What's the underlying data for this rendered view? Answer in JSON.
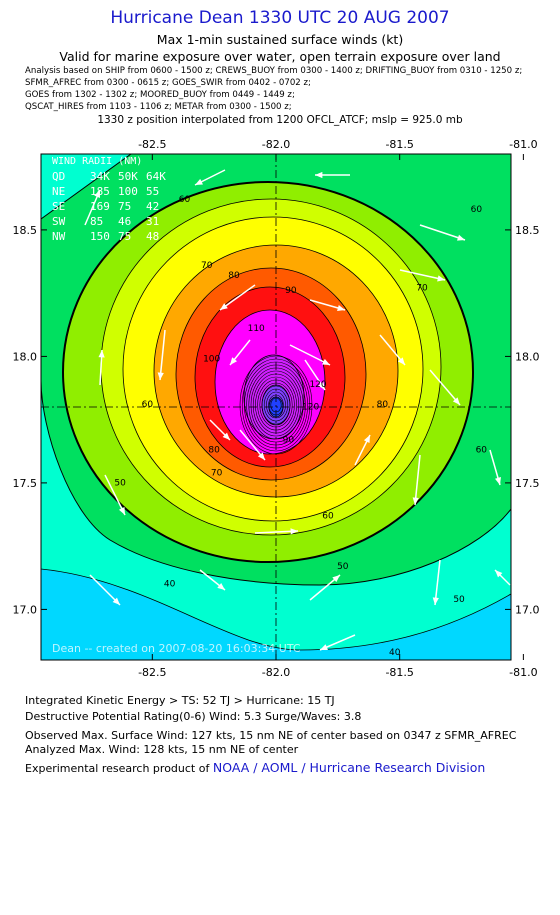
{
  "header": {
    "title": "Hurricane Dean 1330 UTC 20 AUG 2007",
    "subtitle1": "Max 1-min sustained surface winds (kt)",
    "subtitle2": "Valid for marine exposure over water, open terrain exposure over land",
    "sources": [
      "Analysis based on  SHIP from 0600 - 1500 z;  CREWS_BUOY from 0300 - 1400 z;  DRIFTING_BUOY from 0310 - 1250 z;",
      "SFMR_AFREC from 0300 - 0615 z;  GOES_SWIR from 0402 - 0702 z;",
      "GOES from 1302 - 1302 z;  MOORED_BUOY from 0449 - 1449 z;",
      "QSCAT_HIRES from 1103 - 1106 z;  METAR from 0300 - 1500 z;"
    ],
    "position_note": "1330 z position interpolated from 1200 OFCL_ATCF; mslp = 925.0 mb"
  },
  "colors": {
    "title": "#1a1acc",
    "bands": [
      "#00d8ff",
      "#00ffd0",
      "#00e060",
      "#90ee00",
      "#d0ff00",
      "#ffff00",
      "#ffa800",
      "#ff5a00",
      "#ff1010",
      "#ff00ff",
      "#d020ff",
      "#8040ff",
      "#2040ff"
    ]
  },
  "chart_data": {
    "type": "contour",
    "x_ticks": [
      "-82.5",
      "-82.0",
      "-81.5",
      "-81.0"
    ],
    "y_ticks": [
      "18.5",
      "18.0",
      "17.5",
      "17.0"
    ],
    "x_range": [
      -82.95,
      -81.05
    ],
    "y_range": [
      16.8,
      18.8
    ],
    "center": {
      "lon": -82.0,
      "lat": 17.8
    },
    "levels": [
      40,
      50,
      60,
      70,
      80,
      90,
      100,
      110,
      120
    ],
    "level_labels": [
      {
        "text": "40",
        "lon": -82.43,
        "lat": 17.09
      },
      {
        "text": "40",
        "lon": -81.52,
        "lat": 16.82
      },
      {
        "text": "50",
        "lon": -82.63,
        "lat": 17.49
      },
      {
        "text": "50",
        "lon": -81.26,
        "lat": 17.03
      },
      {
        "text": "50",
        "lon": -81.73,
        "lat": 17.16
      },
      {
        "text": "60",
        "lon": -82.37,
        "lat": 18.61
      },
      {
        "text": "60",
        "lon": -81.19,
        "lat": 18.57
      },
      {
        "text": "60",
        "lon": -82.52,
        "lat": 17.8
      },
      {
        "text": "60",
        "lon": -81.79,
        "lat": 17.36
      },
      {
        "text": "60",
        "lon": -81.17,
        "lat": 17.62
      },
      {
        "text": "70",
        "lon": -82.28,
        "lat": 18.35
      },
      {
        "text": "70",
        "lon": -81.41,
        "lat": 18.26
      },
      {
        "text": "70",
        "lon": -82.24,
        "lat": 17.53
      },
      {
        "text": "80",
        "lon": -82.17,
        "lat": 18.31
      },
      {
        "text": "80",
        "lon": -82.25,
        "lat": 17.62
      },
      {
        "text": "80",
        "lon": -81.57,
        "lat": 17.8
      },
      {
        "text": "90",
        "lon": -81.94,
        "lat": 18.25
      },
      {
        "text": "90",
        "lon": -81.95,
        "lat": 17.66
      },
      {
        "text": "100",
        "lon": -82.26,
        "lat": 17.98
      },
      {
        "text": "110",
        "lon": -82.08,
        "lat": 18.1
      },
      {
        "text": "120",
        "lon": -81.83,
        "lat": 17.88
      },
      {
        "text": "120",
        "lon": -81.86,
        "lat": 17.79
      }
    ],
    "wind_radii": {
      "title": "WIND RADII (NM)",
      "header": [
        "QD",
        "34K",
        "50K",
        "64K"
      ],
      "rows": [
        [
          "NE",
          "185",
          "100",
          "55"
        ],
        [
          "SE",
          "169",
          "75",
          "42"
        ],
        [
          "SW",
          "85",
          "46",
          "31"
        ],
        [
          "NW",
          "150",
          "75",
          "48"
        ]
      ]
    },
    "credit": "Dean -- created on 2007-08-20 16:03:34 UTC"
  },
  "footer": {
    "ike": "Integrated Kinetic Energy > TS: 52 TJ   > Hurricane: 15 TJ",
    "dpr": "Destructive Potential Rating(0-6)   Wind: 5.3 Surge/Waves: 3.8",
    "obs": "Observed Max. Surface Wind: 127 kts, 15 nm NE of center based on 0347 z SFMR_AFREC",
    "analyzed": "Analyzed Max. Wind: 128 kts, 15 nm NE of center",
    "product": "Experimental research product of",
    "link": "NOAA / AOML / Hurricane Research Division"
  }
}
